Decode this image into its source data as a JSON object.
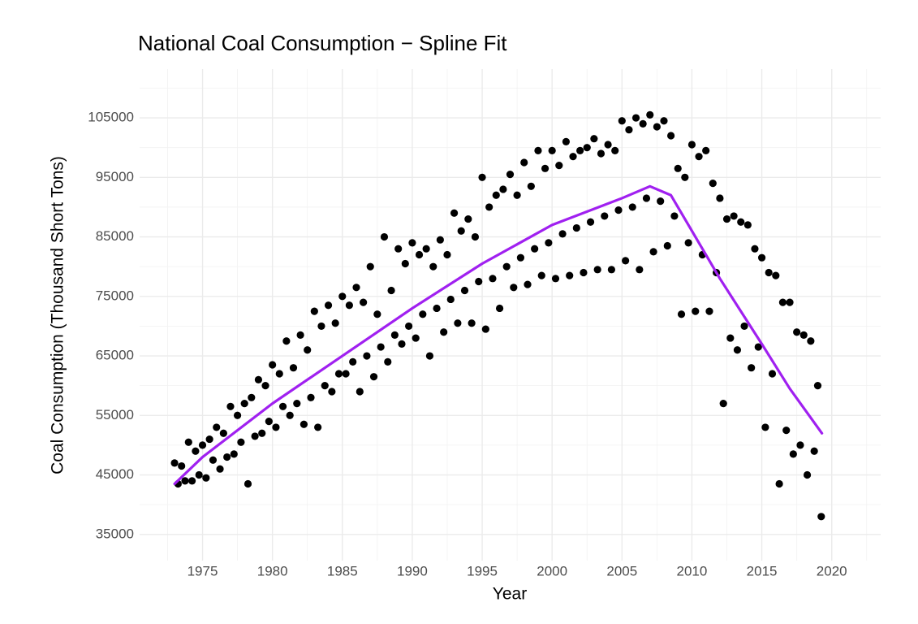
{
  "chart_data": {
    "type": "scatter",
    "title": "National Coal Consumption − Spline Fit",
    "x_label": "Year",
    "y_label": "Coal Consumption   (Thousand Short Tons)",
    "xlim": [
      1970.5,
      2023.5
    ],
    "ylim": [
      30600,
      113200
    ],
    "xticks": [
      1975,
      1980,
      1985,
      1990,
      1995,
      2000,
      2005,
      2010,
      2015,
      2020
    ],
    "yticks": [
      35000,
      45000,
      55000,
      65000,
      75000,
      85000,
      95000,
      105000
    ],
    "grid": true,
    "points": {
      "color": "#000000",
      "x": [
        1973,
        1973.25,
        1973.5,
        1973.75,
        1974,
        1974.25,
        1974.5,
        1974.75,
        1975,
        1975.25,
        1975.5,
        1975.75,
        1976,
        1976.25,
        1976.5,
        1976.75,
        1977,
        1977.25,
        1977.5,
        1977.75,
        1978,
        1978.25,
        1978.5,
        1978.75,
        1979,
        1979.25,
        1979.5,
        1979.75,
        1980,
        1980.25,
        1980.5,
        1980.75,
        1981,
        1981.25,
        1981.5,
        1981.75,
        1982,
        1982.25,
        1982.5,
        1982.75,
        1983,
        1983.25,
        1983.5,
        1983.75,
        1984,
        1984.25,
        1984.5,
        1984.75,
        1985,
        1985.25,
        1985.5,
        1985.75,
        1986,
        1986.25,
        1986.5,
        1986.75,
        1987,
        1987.25,
        1987.5,
        1987.75,
        1988,
        1988.25,
        1988.5,
        1988.75,
        1989,
        1989.25,
        1989.5,
        1989.75,
        1990,
        1990.25,
        1990.5,
        1990.75,
        1991,
        1991.25,
        1991.5,
        1991.75,
        1992,
        1992.25,
        1992.5,
        1992.75,
        1993,
        1993.25,
        1993.5,
        1993.75,
        1994,
        1994.25,
        1994.5,
        1994.75,
        1995,
        1995.25,
        1995.5,
        1995.75,
        1996,
        1996.25,
        1996.5,
        1996.75,
        1997,
        1997.25,
        1997.5,
        1997.75,
        1998,
        1998.25,
        1998.5,
        1998.75,
        1999,
        1999.25,
        1999.5,
        1999.75,
        2000,
        2000.25,
        2000.5,
        2000.75,
        2001,
        2001.25,
        2001.5,
        2001.75,
        2002,
        2002.25,
        2002.5,
        2002.75,
        2003,
        2003.25,
        2003.5,
        2003.75,
        2004,
        2004.25,
        2004.5,
        2004.75,
        2005,
        2005.25,
        2005.5,
        2005.75,
        2006,
        2006.25,
        2006.5,
        2006.75,
        2007,
        2007.25,
        2007.5,
        2007.75,
        2008,
        2008.25,
        2008.5,
        2008.75,
        2009,
        2009.25,
        2009.5,
        2009.75,
        2010,
        2010.25,
        2010.5,
        2010.75,
        2011,
        2011.25,
        2011.5,
        2011.75,
        2012,
        2012.25,
        2012.5,
        2012.75,
        2013,
        2013.25,
        2013.5,
        2013.75,
        2014,
        2014.25,
        2014.5,
        2014.75,
        2015,
        2015.25,
        2015.5,
        2015.75,
        2016,
        2016.25,
        2016.5,
        2016.75,
        2017,
        2017.25,
        2017.5,
        2017.75,
        2018,
        2018.25,
        2018.5,
        2018.75,
        2019,
        2019.25
      ],
      "values": [
        47000,
        43500,
        46500,
        44000,
        50500,
        44000,
        49000,
        45000,
        50000,
        44500,
        51000,
        47500,
        53000,
        46000,
        52000,
        48000,
        56500,
        48500,
        55000,
        50500,
        57000,
        43500,
        58000,
        51500,
        61000,
        52000,
        60000,
        54000,
        63500,
        53000,
        62000,
        56500,
        67500,
        55000,
        63000,
        57000,
        68500,
        53500,
        66000,
        58000,
        72500,
        53000,
        70000,
        60000,
        73500,
        59000,
        70500,
        62000,
        75000,
        62000,
        73500,
        64000,
        76500,
        59000,
        74000,
        65000,
        80000,
        61500,
        72000,
        66500,
        85000,
        64000,
        76000,
        68500,
        83000,
        67000,
        80500,
        70000,
        84000,
        68000,
        82000,
        72000,
        83000,
        65000,
        80000,
        73000,
        84500,
        69000,
        82000,
        74500,
        89000,
        70500,
        86000,
        76000,
        88000,
        70500,
        85000,
        77500,
        95000,
        69500,
        90000,
        78000,
        92000,
        73000,
        93000,
        80000,
        95500,
        76500,
        92000,
        81500,
        97500,
        77000,
        93500,
        83000,
        99500,
        78500,
        96500,
        84000,
        99500,
        78000,
        97000,
        85500,
        101000,
        78500,
        98500,
        86500,
        99500,
        79000,
        100000,
        87500,
        101500,
        79500,
        99000,
        88500,
        100500,
        79500,
        99500,
        89500,
        104500,
        81000,
        103000,
        90000,
        105000,
        79500,
        104000,
        91500,
        105500,
        82500,
        103500,
        91000,
        104500,
        83500,
        102000,
        88500,
        96500,
        72000,
        95000,
        84000,
        100500,
        72500,
        98500,
        82000,
        99500,
        72500,
        94000,
        79000,
        91500,
        57000,
        88000,
        68000,
        88500,
        66000,
        87500,
        70000,
        87000,
        63000,
        83000,
        66500,
        81500,
        53000,
        79000,
        62000,
        78500,
        43500,
        74000,
        52500,
        74000,
        48500,
        69000,
        50000,
        68500,
        45000,
        67500,
        49000,
        60000,
        38000
      ]
    },
    "fit": {
      "color": "#a020f0",
      "x": [
        1973,
        1975,
        1980,
        1985,
        1990,
        1995,
        2000,
        2005,
        2007,
        2008.5,
        2010,
        2012,
        2015,
        2017,
        2019.3
      ],
      "values": [
        43500,
        48000,
        57000,
        65000,
        73000,
        80500,
        87000,
        91500,
        93500,
        92000,
        86000,
        78000,
        67000,
        59500,
        52000
      ]
    }
  }
}
